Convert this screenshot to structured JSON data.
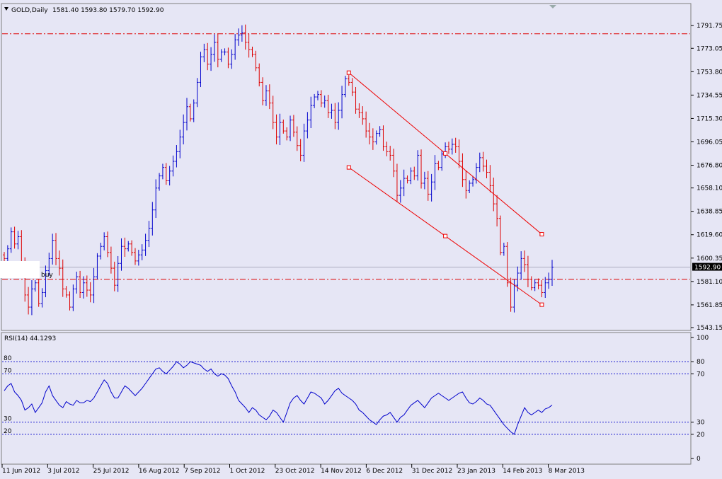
{
  "header": {
    "symbol_label": "GOLD,Daily",
    "ohlc": "1581.40 1593.80 1579.70 1592.90",
    "menu_arrow_icon": "triangle-down-icon"
  },
  "colors": {
    "background": "#e6e6f5",
    "up_bar": "#0000cc",
    "down_bar": "#dd0000",
    "level_line": "#dd0000",
    "channel_line": "#ee0000",
    "rsi_line": "#0000cc",
    "rsi_level": "#0000cc",
    "price_marker_bg": "#000000",
    "price_marker_text": "#ffffff"
  },
  "price_marker": "1592.90",
  "annotation_label": "buy",
  "chart_data": [
    {
      "type": "ohlc",
      "ylim": [
        1543.15,
        1800
      ],
      "y_ticks": [
        "1791.75",
        "1773.05",
        "1753.80",
        "1734.55",
        "1715.30",
        "1696.05",
        "1676.80",
        "1658.10",
        "1638.85",
        "1619.60",
        "1600.35",
        "1581.10",
        "1561.85",
        "1543.15"
      ],
      "x_ticks": [
        "11 Jun 2012",
        "3 Jul 2012",
        "25 Jul 2012",
        "16 Aug 2012",
        "7 Sep 2012",
        "1 Oct 2012",
        "23 Oct 2012",
        "14 Nov 2012",
        "6 Dec 2012",
        "31 Dec 2012",
        "23 Jan 2013",
        "14 Feb 2013",
        "8 Mar 2013"
      ],
      "horizontal_levels": [
        1785,
        1583
      ],
      "last_price": 1592.9,
      "closes": [
        1600,
        1608,
        1622,
        1612,
        1618,
        1595,
        1570,
        1560,
        1575,
        1580,
        1563,
        1572,
        1590,
        1600,
        1615,
        1600,
        1592,
        1575,
        1570,
        1560,
        1575,
        1585,
        1572,
        1580,
        1574,
        1570,
        1585,
        1602,
        1610,
        1618,
        1605,
        1592,
        1578,
        1596,
        1610,
        1608,
        1612,
        1605,
        1598,
        1603,
        1607,
        1615,
        1625,
        1640,
        1658,
        1668,
        1675,
        1664,
        1672,
        1680,
        1688,
        1700,
        1712,
        1725,
        1715,
        1728,
        1745,
        1766,
        1772,
        1760,
        1768,
        1778,
        1764,
        1770,
        1770,
        1760,
        1768,
        1780,
        1784,
        1786,
        1778,
        1772,
        1768,
        1757,
        1745,
        1730,
        1738,
        1728,
        1712,
        1700,
        1712,
        1705,
        1700,
        1714,
        1704,
        1693,
        1685,
        1705,
        1714,
        1726,
        1733,
        1735,
        1728,
        1730,
        1720,
        1722,
        1712,
        1722,
        1735,
        1748,
        1745,
        1737,
        1723,
        1720,
        1715,
        1705,
        1700,
        1696,
        1703,
        1706,
        1692,
        1688,
        1685,
        1672,
        1652,
        1658,
        1666,
        1664,
        1672,
        1668,
        1685,
        1662,
        1666,
        1653,
        1663,
        1678,
        1675,
        1686,
        1692,
        1690,
        1694,
        1692,
        1680,
        1665,
        1656,
        1662,
        1665,
        1675,
        1683,
        1676,
        1671,
        1660,
        1645,
        1633,
        1605,
        1610,
        1580,
        1560,
        1578,
        1588,
        1600,
        1595,
        1583,
        1576,
        1580,
        1578,
        1572,
        1580,
        1583,
        1592.9
      ],
      "channel_upper": [
        [
          1753,
          100
        ],
        [
          1620,
          156
        ]
      ],
      "channel_lower": [
        [
          1675,
          100
        ],
        [
          1562,
          156
        ]
      ]
    },
    {
      "type": "line",
      "title": "RSI(14) 44.1293",
      "ylim": [
        0,
        100
      ],
      "y_ticks": [
        "100",
        "80",
        "70",
        "30",
        "20",
        "0"
      ],
      "levels": [
        80,
        70,
        30,
        20
      ],
      "level_labels_left": [
        "80",
        "70",
        "30",
        "20"
      ],
      "values": [
        56,
        60,
        62,
        55,
        52,
        48,
        40,
        42,
        45,
        38,
        42,
        46,
        55,
        60,
        52,
        48,
        44,
        42,
        47,
        45,
        44,
        48,
        46,
        46,
        48,
        47,
        50,
        55,
        60,
        65,
        62,
        55,
        50,
        50,
        55,
        60,
        58,
        55,
        52,
        55,
        58,
        62,
        66,
        70,
        74,
        75,
        72,
        70,
        73,
        76,
        80,
        78,
        75,
        77,
        80,
        79,
        78,
        77,
        74,
        72,
        74,
        70,
        68,
        70,
        69,
        66,
        60,
        55,
        48,
        45,
        42,
        38,
        42,
        40,
        36,
        34,
        32,
        35,
        40,
        38,
        34,
        30,
        38,
        46,
        50,
        52,
        48,
        45,
        50,
        55,
        54,
        52,
        50,
        45,
        48,
        52,
        56,
        58,
        54,
        52,
        50,
        48,
        45,
        40,
        38,
        35,
        32,
        30,
        28,
        32,
        35,
        36,
        38,
        34,
        30,
        34,
        36,
        40,
        44,
        46,
        48,
        45,
        42,
        46,
        50,
        52,
        54,
        52,
        50,
        48,
        50,
        52,
        54,
        55,
        50,
        46,
        45,
        47,
        50,
        48,
        45,
        44,
        40,
        36,
        32,
        28,
        25,
        22,
        20,
        28,
        35,
        42,
        38,
        36,
        38,
        40,
        38,
        41,
        42,
        44.1293
      ]
    }
  ]
}
